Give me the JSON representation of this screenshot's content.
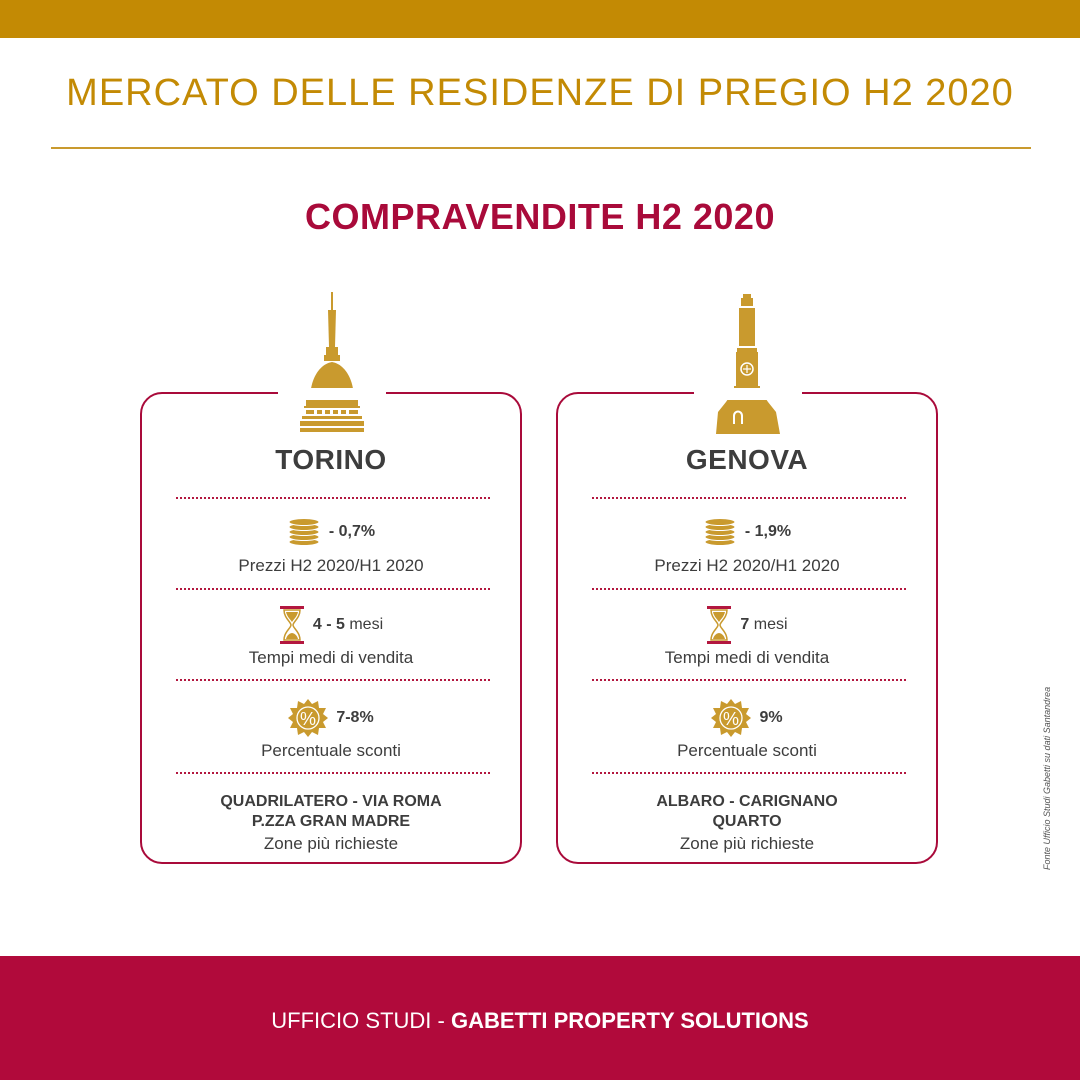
{
  "header": {
    "title": "MERCATO DELLE RESIDENZE DI PREGIO H2 2020",
    "subtitle": "COMPRAVENDITE H2 2020"
  },
  "cities": [
    {
      "name": "TORINO",
      "prices_value": "- 0,7%",
      "prices_label": "Prezzi H2 2020/H1 2020",
      "time_value": "4 - 5",
      "time_unit": "mesi",
      "time_label": "Tempi medi di vendita",
      "discount_value": "7-8%",
      "discount_label": "Percentuale sconti",
      "zones_line1": "QUADRILATERO - VIA ROMA",
      "zones_line2": "P.ZZA GRAN MADRE",
      "zones_label": "Zone più richieste"
    },
    {
      "name": "GENOVA",
      "prices_value": "- 1,9%",
      "prices_label": "Prezzi H2 2020/H1 2020",
      "time_value": "7",
      "time_unit": "mesi",
      "time_label": "Tempi medi di vendita",
      "discount_value": "9%",
      "discount_label": "Percentuale sconti",
      "zones_line1": "ALBARO - CARIGNANO",
      "zones_line2": "QUARTO",
      "zones_label": "Zone più richieste"
    }
  ],
  "source_note": "Fonte Ufficio Studi Gabetti su dati Santandrea",
  "footer": {
    "prefix": "UFFICIO STUDI - ",
    "brand": "GABETTI PROPERTY SOLUTIONS"
  },
  "icons": {
    "landmark_torino": "mole-antonelliana-icon",
    "landmark_genova": "lanterna-icon",
    "prices": "coins-icon",
    "time": "hourglass-icon",
    "discount": "percent-badge-icon"
  },
  "colors": {
    "gold": "#c38a04",
    "crimson": "#a90a3a",
    "footer": "#b10a3b",
    "text": "#3d3d3d"
  }
}
